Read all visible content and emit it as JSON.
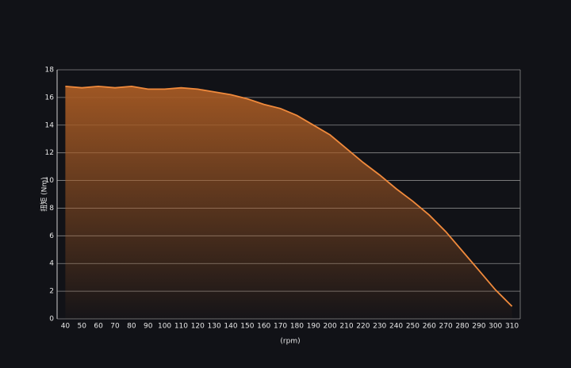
{
  "chart_data": {
    "type": "area",
    "y_label": "扭矩 (Nm)",
    "x_label": "(rpm)",
    "categories": [
      "40",
      "50",
      "60",
      "70",
      "80",
      "90",
      "100",
      "110",
      "120",
      "130",
      "140",
      "150",
      "160",
      "170",
      "180",
      "190",
      "200",
      "210",
      "220",
      "230",
      "240",
      "250",
      "260",
      "270",
      "280",
      "290",
      "300",
      "310"
    ],
    "values": [
      16.8,
      16.7,
      16.8,
      16.7,
      16.8,
      16.6,
      16.6,
      16.7,
      16.6,
      16.4,
      16.2,
      15.9,
      15.5,
      15.2,
      14.7,
      14.0,
      13.3,
      12.3,
      11.3,
      10.4,
      9.4,
      8.5,
      7.5,
      6.3,
      4.9,
      3.5,
      2.1,
      0.9
    ],
    "color": "#f08a3c",
    "ylim": [
      0,
      18
    ],
    "yticks": [
      0,
      2,
      4,
      6,
      8,
      10,
      12,
      14,
      16,
      18
    ],
    "grid": true
  }
}
